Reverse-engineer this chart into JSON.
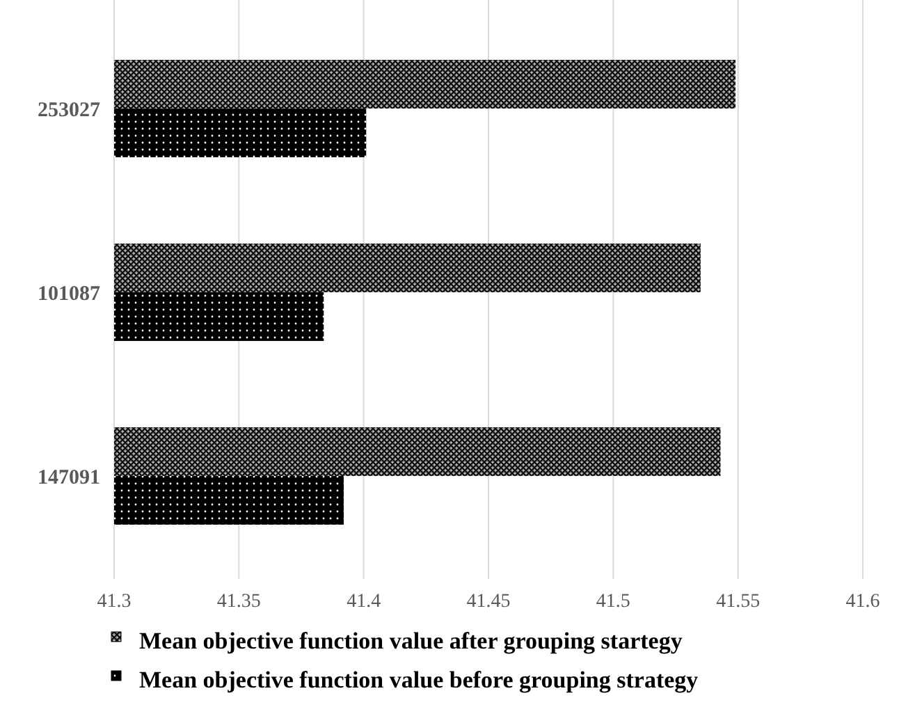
{
  "chart_data": {
    "type": "bar",
    "orientation": "horizontal",
    "categories": [
      "253027",
      "101087",
      "147091"
    ],
    "series": [
      {
        "name": "Mean objective function value after grouping startegy",
        "color": "#808080",
        "values": [
          41.549,
          41.535,
          41.543
        ]
      },
      {
        "name": "Mean objective function value before grouping strategy",
        "color": "#000000",
        "values": [
          41.401,
          41.384,
          41.392
        ]
      }
    ],
    "xlim": [
      41.3,
      41.6
    ],
    "xticks": [
      41.3,
      41.35,
      41.4,
      41.45,
      41.5,
      41.55,
      41.6
    ],
    "grid": "x",
    "legend": "bottom"
  }
}
